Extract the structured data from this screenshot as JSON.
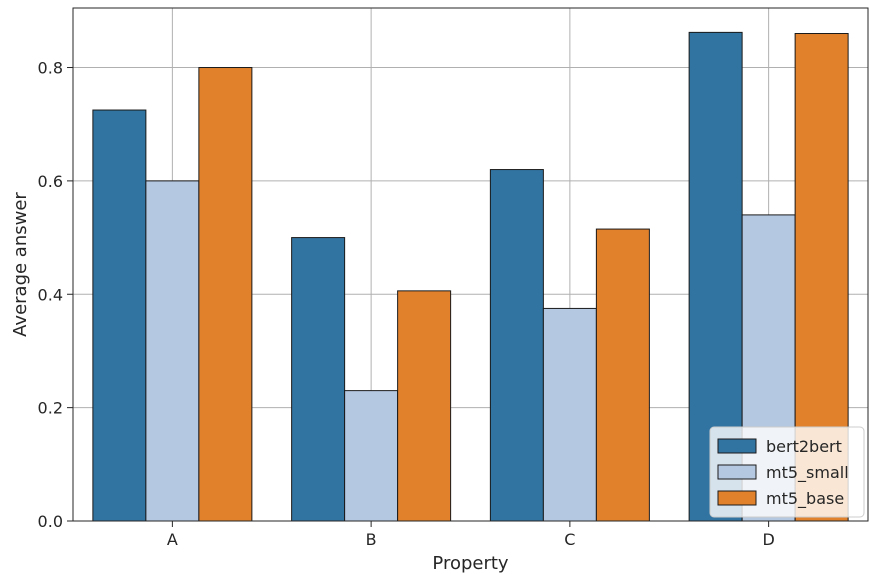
{
  "chart_data": {
    "type": "bar",
    "title": "",
    "xlabel": "Property",
    "ylabel": "Average answer",
    "categories": [
      "A",
      "B",
      "C",
      "D"
    ],
    "series": [
      {
        "name": "bert2bert",
        "color": "#3274a1",
        "values": [
          0.725,
          0.5,
          0.62,
          0.862
        ]
      },
      {
        "name": "mt5_small",
        "color": "#b5c8e2",
        "values": [
          0.6,
          0.23,
          0.375,
          0.54
        ]
      },
      {
        "name": "mt5_base",
        "color": "#e1812c",
        "values": [
          0.8,
          0.406,
          0.515,
          0.86
        ]
      }
    ],
    "yticks": [
      "0.0",
      "0.2",
      "0.4",
      "0.6",
      "0.8"
    ],
    "ylim": [
      0,
      0.905
    ],
    "grid": true,
    "legend_position": "bottom-right"
  }
}
